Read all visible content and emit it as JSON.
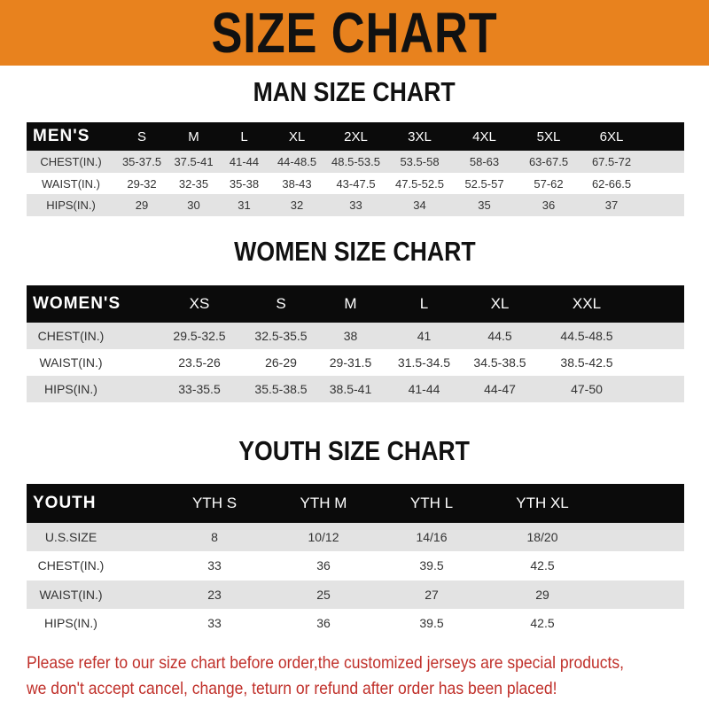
{
  "banner": {
    "title": "SIZE CHART",
    "color": "#E8821E"
  },
  "men": {
    "title": "MAN SIZE CHART",
    "header": [
      "MEN'S",
      "S",
      "M",
      "L",
      "XL",
      "2XL",
      "3XL",
      "4XL",
      "5XL",
      "6XL"
    ],
    "rows": [
      [
        "CHEST(IN.)",
        "35-37.5",
        "37.5-41",
        "41-44",
        "44-48.5",
        "48.5-53.5",
        "53.5-58",
        "58-63",
        "63-67.5",
        "67.5-72"
      ],
      [
        "WAIST(IN.)",
        "29-32",
        "32-35",
        "35-38",
        "38-43",
        "43-47.5",
        "47.5-52.5",
        "52.5-57",
        "57-62",
        "62-66.5"
      ],
      [
        "HIPS(IN.)",
        "29",
        "30",
        "31",
        "32",
        "33",
        "34",
        "35",
        "36",
        "37"
      ]
    ]
  },
  "women": {
    "title": "WOMEN SIZE CHART",
    "header": [
      "WOMEN'S",
      "XS",
      "S",
      "M",
      "L",
      "XL",
      "XXL"
    ],
    "rows": [
      [
        "CHEST(IN.)",
        "29.5-32.5",
        "32.5-35.5",
        "38",
        "41",
        "44.5",
        "44.5-48.5"
      ],
      [
        "WAIST(IN.)",
        "23.5-26",
        "26-29",
        "29-31.5",
        "31.5-34.5",
        "34.5-38.5",
        "38.5-42.5"
      ],
      [
        "HIPS(IN.)",
        "33-35.5",
        "35.5-38.5",
        "38.5-41",
        "41-44",
        "44-47",
        "47-50"
      ]
    ]
  },
  "youth": {
    "title": "YOUTH SIZE CHART",
    "header": [
      "YOUTH",
      "YTH S",
      "YTH M",
      "YTH L",
      "YTH XL"
    ],
    "rows": [
      [
        "U.S.SIZE",
        "8",
        "10/12",
        "14/16",
        "18/20"
      ],
      [
        "CHEST(IN.)",
        "33",
        "36",
        "39.5",
        "42.5"
      ],
      [
        "WAIST(IN.)",
        "23",
        "25",
        "27",
        "29"
      ],
      [
        "HIPS(IN.)",
        "33",
        "36",
        "39.5",
        "42.5"
      ]
    ]
  },
  "notice": {
    "line1": "Please refer to our size chart before order,the customized jerseys are special products,",
    "line2": "we don't accept cancel, change, teturn or refund after order has been placed!",
    "color": "#c0302a"
  }
}
